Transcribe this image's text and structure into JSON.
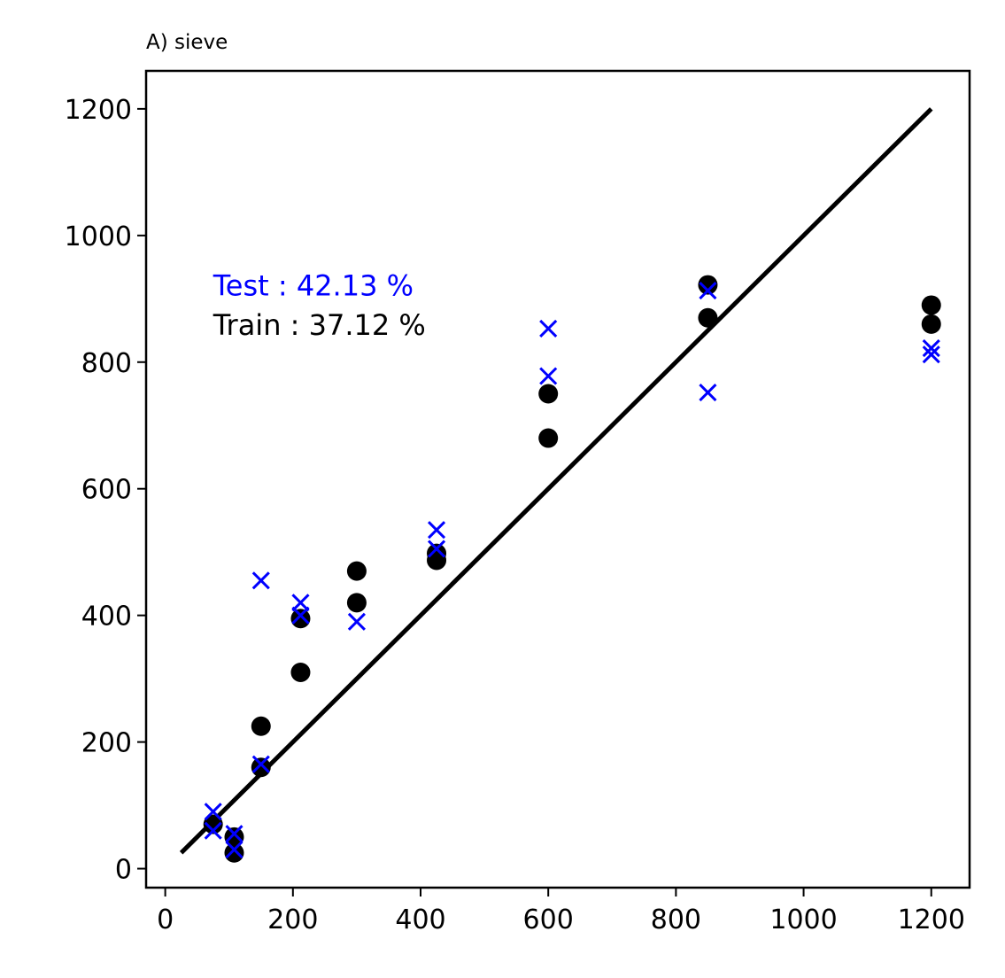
{
  "chart_data": {
    "type": "scatter",
    "title": "A) sieve",
    "xlabel": "",
    "ylabel": "",
    "xlim": [
      -30,
      1260
    ],
    "ylim": [
      -30,
      1260
    ],
    "x_ticks": [
      0,
      200,
      400,
      600,
      800,
      1000,
      1200
    ],
    "y_ticks": [
      0,
      200,
      400,
      600,
      800,
      1000,
      1200
    ],
    "grid": false,
    "identity_line": {
      "from": [
        25,
        25
      ],
      "to": [
        1200,
        1200
      ],
      "color": "#000000"
    },
    "annotations": [
      {
        "text": "Test : 42.13 %",
        "color": "#0000ff",
        "x": 75,
        "y": 905
      },
      {
        "text": "Train : 37.12 %",
        "color": "#000000",
        "x": 75,
        "y": 843
      }
    ],
    "series": [
      {
        "marker": "circle",
        "color": "#000000",
        "points": [
          [
            75,
            70
          ],
          [
            108,
            50
          ],
          [
            108,
            25
          ],
          [
            150,
            160
          ],
          [
            150,
            225
          ],
          [
            212,
            395
          ],
          [
            212,
            310
          ],
          [
            300,
            470
          ],
          [
            300,
            420
          ],
          [
            425,
            498
          ],
          [
            425,
            487
          ],
          [
            600,
            750
          ],
          [
            600,
            680
          ],
          [
            850,
            922
          ],
          [
            850,
            870
          ],
          [
            1200,
            890
          ],
          [
            1200,
            860
          ]
        ]
      },
      {
        "marker": "x",
        "color": "#0000ff",
        "points": [
          [
            75,
            90
          ],
          [
            75,
            60
          ],
          [
            108,
            55
          ],
          [
            108,
            30
          ],
          [
            150,
            455
          ],
          [
            150,
            165
          ],
          [
            212,
            420
          ],
          [
            212,
            400
          ],
          [
            300,
            390
          ],
          [
            425,
            535
          ],
          [
            425,
            505
          ],
          [
            600,
            853
          ],
          [
            600,
            778
          ],
          [
            850,
            913
          ],
          [
            850,
            752
          ],
          [
            1200,
            822
          ],
          [
            1200,
            812
          ]
        ]
      }
    ]
  }
}
